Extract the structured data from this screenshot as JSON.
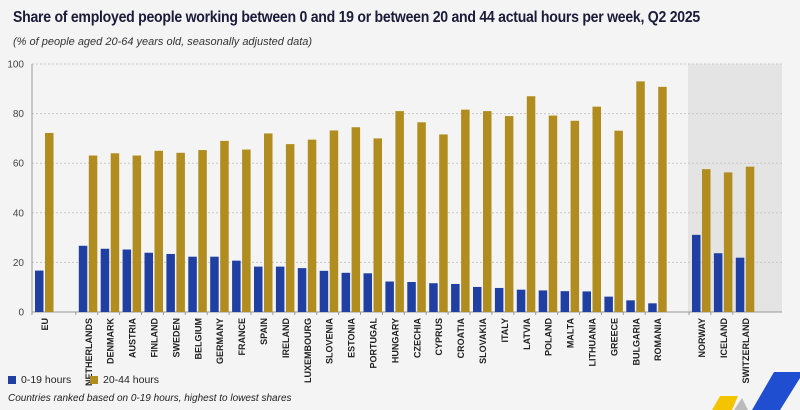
{
  "chart_data": {
    "type": "bar",
    "title": "Share of employed people working between 0 and 19 or between 20 and 44 actual hours per week, Q2 2025",
    "subtitle": "(% of people aged 20-64 years old, seasonally adjusted data)",
    "categories": [
      "EU",
      "NETHERLANDS",
      "DENMARK",
      "AUSTRIA",
      "FINLAND",
      "SWEDEN",
      "BELGIUM",
      "GERMANY",
      "FRANCE",
      "SPAIN",
      "IRELAND",
      "LUXEMBOURG",
      "SLOVENIA",
      "ESTONIA",
      "PORTUGAL",
      "HUNGARY",
      "CZECHIA",
      "CYPRUS",
      "CROATIA",
      "SLOVAKIA",
      "ITALY",
      "LATVIA",
      "POLAND",
      "MALTA",
      "LITHUANIA",
      "GREECE",
      "BULGARIA",
      "ROMANIA",
      "NORWAY",
      "ICELAND",
      "SWITZERLAND"
    ],
    "groups": [
      [
        "EU"
      ],
      [
        "NETHERLANDS",
        "DENMARK",
        "AUSTRIA",
        "FINLAND",
        "SWEDEN",
        "BELGIUM",
        "GERMANY",
        "FRANCE",
        "SPAIN",
        "IRELAND",
        "LUXEMBOURG",
        "SLOVENIA",
        "ESTONIA",
        "PORTUGAL",
        "HUNGARY",
        "CZECHIA",
        "CYPRUS",
        "CROATIA",
        "SLOVAKIA",
        "ITALY",
        "LATVIA",
        "POLAND",
        "MALTA",
        "LITHUANIA",
        "GREECE",
        "BULGARIA",
        "ROMANIA"
      ],
      [
        "NORWAY",
        "ICELAND",
        "SWITZERLAND"
      ]
    ],
    "series": [
      {
        "name": "0-19 hours",
        "color": "#1f3fa3",
        "values": [
          16.7,
          26.7,
          25.5,
          25.2,
          23.9,
          23.4,
          22.3,
          22.3,
          20.7,
          18.3,
          18.3,
          17.7,
          16.6,
          15.8,
          15.6,
          12.3,
          12.1,
          11.6,
          11.3,
          10.1,
          9.7,
          9.0,
          8.7,
          8.4,
          8.3,
          6.2,
          4.7,
          3.5,
          31.1,
          23.7,
          21.9
        ]
      },
      {
        "name": "20-44 hours",
        "color": "#b08d1e",
        "values": [
          72.2,
          63.1,
          64.0,
          63.1,
          65.0,
          64.2,
          65.3,
          69.0,
          65.5,
          72.0,
          67.7,
          69.5,
          73.2,
          74.5,
          70.0,
          81.0,
          76.5,
          71.6,
          81.6,
          81.0,
          79.0,
          87.0,
          79.2,
          77.1,
          82.8,
          73.1,
          93.0,
          90.8,
          57.6,
          56.3,
          58.6
        ]
      }
    ],
    "ylim": [
      0,
      100
    ],
    "yticks": [
      0,
      20,
      40,
      60,
      80,
      100
    ],
    "grid": true,
    "legend": "bottom-left",
    "note": "Countries ranked based on 0-19 hours,  highest to lowest shares"
  }
}
